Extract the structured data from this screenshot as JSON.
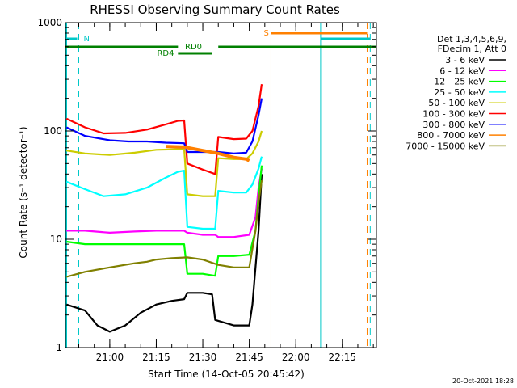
{
  "chart_data": {
    "type": "line",
    "title": "RHESSI Observing Summary Count Rates",
    "xlabel": "Start Time (14-Oct-05 20:45:42)",
    "ylabel": "Count Rate (s⁻¹ detector⁻¹)",
    "yscale": "log",
    "ylim": [
      1,
      1000
    ],
    "xlim": [
      "20:45:42",
      "22:26:00"
    ],
    "x_ticks": [
      "21:00",
      "21:15",
      "21:30",
      "21:45",
      "22:00",
      "22:15"
    ],
    "y_ticks": [
      "1",
      "10",
      "100",
      "1000"
    ],
    "legend_header": [
      "Det 1,3,4,5,6,9,",
      "FDecim 1, Att 0"
    ],
    "legend_position": "right",
    "series": [
      {
        "name": "3 - 6 keV",
        "color": "#000000",
        "points": [
          [
            "20:46",
            2.5
          ],
          [
            "20:52",
            2.2
          ],
          [
            "20:56",
            1.6
          ],
          [
            "21:00",
            1.4
          ],
          [
            "21:05",
            1.6
          ],
          [
            "21:10",
            2.1
          ],
          [
            "21:15",
            2.5
          ],
          [
            "21:20",
            2.7
          ],
          [
            "21:24",
            2.8
          ],
          [
            "21:25",
            3.2
          ],
          [
            "21:30",
            3.2
          ],
          [
            "21:33",
            3.1
          ],
          [
            "21:34",
            1.8
          ],
          [
            "21:40",
            1.6
          ],
          [
            "21:45",
            1.6
          ],
          [
            "21:46",
            2.5
          ],
          [
            "21:48",
            12
          ],
          [
            "21:49",
            40
          ]
        ]
      },
      {
        "name": "6 - 12 keV",
        "color": "#ff00ff",
        "points": [
          [
            "20:46",
            12
          ],
          [
            "20:52",
            12
          ],
          [
            "21:00",
            11.5
          ],
          [
            "21:08",
            11.8
          ],
          [
            "21:15",
            12
          ],
          [
            "21:24",
            12
          ],
          [
            "21:25",
            11.5
          ],
          [
            "21:30",
            11
          ],
          [
            "21:34",
            11
          ],
          [
            "21:35",
            10.5
          ],
          [
            "21:40",
            10.5
          ],
          [
            "21:45",
            11
          ],
          [
            "21:47",
            16
          ],
          [
            "21:48",
            30
          ],
          [
            "21:49",
            45
          ]
        ]
      },
      {
        "name": "12 - 25 keV",
        "color": "#00ff00",
        "points": [
          [
            "20:46",
            9.5
          ],
          [
            "20:52",
            9
          ],
          [
            "21:00",
            9
          ],
          [
            "21:08",
            9
          ],
          [
            "21:15",
            9
          ],
          [
            "21:24",
            9
          ],
          [
            "21:25",
            4.8
          ],
          [
            "21:30",
            4.8
          ],
          [
            "21:34",
            4.6
          ],
          [
            "21:35",
            7
          ],
          [
            "21:40",
            7
          ],
          [
            "21:45",
            7.2
          ],
          [
            "21:47",
            12
          ],
          [
            "21:48",
            25
          ],
          [
            "21:49",
            48
          ]
        ]
      },
      {
        "name": "25 - 50 keV",
        "color": "#00ffff",
        "points": [
          [
            "20:46",
            34
          ],
          [
            "20:52",
            29
          ],
          [
            "20:58",
            25
          ],
          [
            "21:05",
            26
          ],
          [
            "21:12",
            30
          ],
          [
            "21:18",
            37
          ],
          [
            "21:22",
            42
          ],
          [
            "21:24",
            43
          ],
          [
            "21:25",
            13
          ],
          [
            "21:30",
            12.5
          ],
          [
            "21:34",
            12.5
          ],
          [
            "21:35",
            28
          ],
          [
            "21:40",
            27
          ],
          [
            "21:44",
            27
          ],
          [
            "21:46",
            32
          ],
          [
            "21:48",
            45
          ],
          [
            "21:49",
            58
          ]
        ]
      },
      {
        "name": "50 - 100 keV",
        "color": "#cccc00",
        "points": [
          [
            "20:46",
            66
          ],
          [
            "20:52",
            62
          ],
          [
            "21:00",
            60
          ],
          [
            "21:08",
            63
          ],
          [
            "21:15",
            67
          ],
          [
            "21:24",
            68
          ],
          [
            "21:25",
            26
          ],
          [
            "21:30",
            25
          ],
          [
            "21:34",
            25
          ],
          [
            "21:35",
            56
          ],
          [
            "21:40",
            55
          ],
          [
            "21:44",
            55
          ],
          [
            "21:46",
            62
          ],
          [
            "21:48",
            80
          ],
          [
            "21:49",
            100
          ]
        ]
      },
      {
        "name": "100 - 300 keV",
        "color": "#ff0000",
        "points": [
          [
            "20:46",
            130
          ],
          [
            "20:52",
            108
          ],
          [
            "20:58",
            95
          ],
          [
            "21:05",
            96
          ],
          [
            "21:12",
            103
          ],
          [
            "21:18",
            115
          ],
          [
            "21:22",
            124
          ],
          [
            "21:24",
            125
          ],
          [
            "21:25",
            50
          ],
          [
            "21:30",
            44
          ],
          [
            "21:34",
            40
          ],
          [
            "21:35",
            88
          ],
          [
            "21:40",
            84
          ],
          [
            "21:44",
            85
          ],
          [
            "21:46",
            100
          ],
          [
            "21:48",
            170
          ],
          [
            "21:49",
            270
          ]
        ]
      },
      {
        "name": "300 - 800 keV",
        "color": "#0000ff",
        "points": [
          [
            "20:46",
            108
          ],
          [
            "20:52",
            90
          ],
          [
            "21:00",
            82
          ],
          [
            "21:06",
            80
          ],
          [
            "21:12",
            80
          ],
          [
            "21:18",
            78
          ],
          [
            "21:24",
            77
          ],
          [
            "21:25",
            64
          ],
          [
            "21:30",
            64
          ],
          [
            "21:34",
            64
          ],
          [
            "21:35",
            64
          ],
          [
            "21:40",
            62
          ],
          [
            "21:44",
            63
          ],
          [
            "21:46",
            80
          ],
          [
            "21:48",
            140
          ],
          [
            "21:49",
            200
          ]
        ]
      },
      {
        "name": "800 - 7000 keV",
        "color": "#ff8000",
        "points": [
          [
            "21:18",
            72
          ],
          [
            "21:24",
            71
          ],
          [
            "21:30",
            66
          ],
          [
            "21:35",
            62
          ],
          [
            "21:40",
            57
          ],
          [
            "21:44",
            55
          ],
          [
            "21:45",
            53
          ]
        ]
      },
      {
        "name": "7000 - 15000 keV",
        "color": "#808000",
        "points": [
          [
            "20:46",
            4.5
          ],
          [
            "20:52",
            5
          ],
          [
            "21:00",
            5.5
          ],
          [
            "21:08",
            6
          ],
          [
            "21:12",
            6.2
          ],
          [
            "21:15",
            6.5
          ],
          [
            "21:20",
            6.7
          ],
          [
            "21:25",
            6.8
          ],
          [
            "21:30",
            6.5
          ],
          [
            "21:35",
            5.8
          ],
          [
            "21:40",
            5.5
          ],
          [
            "21:45",
            5.5
          ],
          [
            "21:47",
            12
          ],
          [
            "21:48",
            22
          ],
          [
            "21:49",
            35
          ]
        ]
      }
    ],
    "annotations": [
      {
        "label": "N",
        "time": "20:50",
        "color": "#00c8c8"
      },
      {
        "label": "S",
        "time": "21:52",
        "color": "#ff8000"
      },
      {
        "label": "RD0",
        "time": "21:28",
        "color": "#008000"
      },
      {
        "label": "RD4",
        "time": "21:20",
        "color": "#008000"
      }
    ]
  },
  "timestamp": "20-Oct-2021 18:28"
}
